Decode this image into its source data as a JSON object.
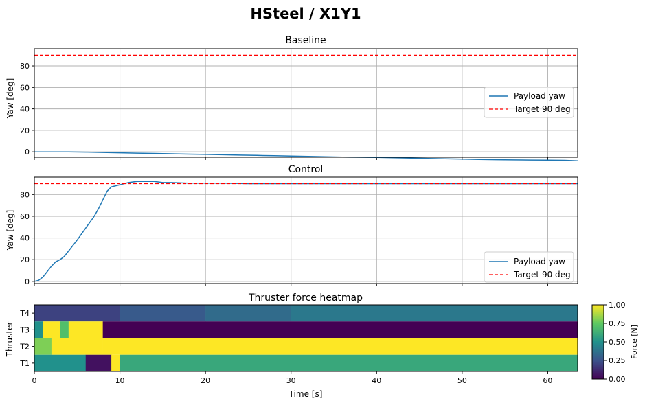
{
  "figure_title": "HSteel / X1Y1",
  "colors": {
    "line": "#1f77b4",
    "target": "#ff0000",
    "grid": "#b0b0b0"
  },
  "chart_data": [
    {
      "type": "line",
      "title": "Baseline",
      "xlabel": "",
      "ylabel": "Yaw [deg]",
      "xlim": [
        0,
        63.5
      ],
      "ylim": [
        -5,
        96
      ],
      "yticks": [
        "0",
        "20",
        "40",
        "60",
        "80"
      ],
      "xticks": [
        "0",
        "10",
        "20",
        "30",
        "40",
        "50",
        "60"
      ],
      "grid": true,
      "legend_position": "right",
      "series": [
        {
          "name": "Payload yaw",
          "x": [
            0,
            2,
            4,
            6,
            8,
            10,
            12,
            14,
            16,
            18,
            20,
            22,
            24,
            26,
            28,
            30,
            32,
            34,
            36,
            38,
            40,
            42,
            44,
            46,
            48,
            50,
            52,
            54,
            56,
            58,
            60,
            62,
            63.5
          ],
          "y": [
            0,
            0,
            -0.1,
            -0.3,
            -0.6,
            -0.9,
            -1.2,
            -1.5,
            -1.8,
            -2.1,
            -2.4,
            -2.7,
            -3.0,
            -3.3,
            -3.6,
            -3.9,
            -4.2,
            -4.5,
            -4.8,
            -5.0,
            -5.2,
            -5.5,
            -5.8,
            -6.1,
            -6.4,
            -6.8,
            -7.1,
            -7.3,
            -7.5,
            -7.6,
            -7.7,
            -7.9,
            -8.3
          ]
        },
        {
          "name": "Target 90 deg",
          "x": [
            0,
            63.5
          ],
          "y": [
            90,
            90
          ],
          "style": "dashed"
        }
      ]
    },
    {
      "type": "line",
      "title": "Control",
      "xlabel": "",
      "ylabel": "Yaw [deg]",
      "xlim": [
        0,
        63.5
      ],
      "ylim": [
        -2,
        96
      ],
      "yticks": [
        "0",
        "20",
        "40",
        "60",
        "80"
      ],
      "xticks": [
        "0",
        "10",
        "20",
        "30",
        "40",
        "50",
        "60"
      ],
      "grid": true,
      "legend_position": "lower right",
      "series": [
        {
          "name": "Payload yaw",
          "x": [
            0,
            0.5,
            1,
            1.5,
            2,
            2.5,
            3,
            3.5,
            4,
            5,
            6,
            7,
            7.5,
            8,
            8.5,
            9,
            10,
            11,
            12,
            13,
            14,
            15,
            16,
            18,
            20,
            22,
            25,
            30,
            35,
            40,
            45,
            50,
            55,
            60,
            63.5
          ],
          "y": [
            0,
            1,
            4,
            9,
            14,
            18,
            20,
            23,
            28,
            38,
            49,
            60,
            67,
            75,
            83,
            87,
            89,
            91,
            92,
            92,
            92,
            91,
            91,
            90.5,
            90.5,
            90.5,
            90,
            90,
            90,
            90,
            90,
            90,
            90,
            90,
            90
          ]
        },
        {
          "name": "Target 90 deg",
          "x": [
            0,
            63.5
          ],
          "y": [
            90,
            90
          ],
          "style": "dashed"
        }
      ]
    },
    {
      "type": "heatmap",
      "title": "Thruster force heatmap",
      "xlabel": "Time [s]",
      "ylabel": "Thruster",
      "xlim": [
        0,
        63.5
      ],
      "xticks": [
        "0",
        "10",
        "20",
        "30",
        "40",
        "50",
        "60"
      ],
      "rows": [
        "T4",
        "T3",
        "T2",
        "T1"
      ],
      "colorbar_label": "Force [N]",
      "colorbar_ticks": [
        "0.00",
        "0.25",
        "0.50",
        "0.75",
        "1.00"
      ],
      "clim": [
        0,
        1
      ],
      "colormap": "viridis",
      "segments": {
        "T4": [
          [
            0,
            10,
            0.2
          ],
          [
            10,
            20,
            0.28
          ],
          [
            20,
            30,
            0.35
          ],
          [
            30,
            63.5,
            0.4
          ]
        ],
        "T3": [
          [
            0,
            1,
            0.5
          ],
          [
            1,
            3,
            1.0
          ],
          [
            3,
            4,
            0.7
          ],
          [
            4,
            8,
            1.0
          ],
          [
            8,
            63.5,
            0.0
          ]
        ],
        "T2": [
          [
            0,
            2,
            0.8
          ],
          [
            2,
            4,
            1.0
          ],
          [
            4,
            8,
            1.0
          ],
          [
            8,
            63.5,
            1.0
          ]
        ],
        "T1": [
          [
            0,
            6,
            0.5
          ],
          [
            6,
            9,
            0.05
          ],
          [
            9,
            10,
            1.0
          ],
          [
            10,
            63.5,
            0.6
          ]
        ]
      }
    }
  ]
}
